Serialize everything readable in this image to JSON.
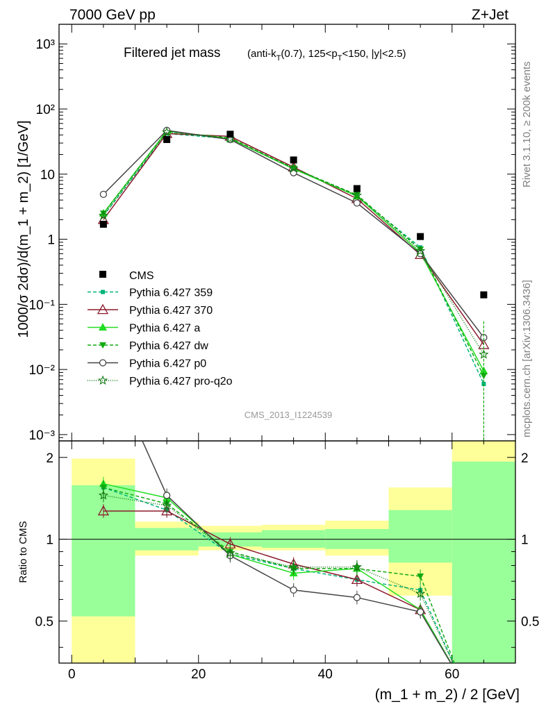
{
  "header": {
    "left": "7000 GeV pp",
    "right": "Z+Jet",
    "side_top": "Rivet 3.1.10, ≥ 200k events",
    "side_bottom": "mcplots.cern.ch [arXiv:1306.3436]",
    "watermark": "CMS_2013_I1224539"
  },
  "chart_data": {
    "type": "line",
    "title_main": "Filtered jet mass",
    "title_cut_prefix": "(anti-k",
    "title_cut_sub1": "T",
    "title_cut_mid": "(0.7), 125<p",
    "title_cut_sub2": "T",
    "title_cut_suffix": "<150, |y|<2.5)",
    "xlabel": "(m_1 + m_2) / 2 [GeV]",
    "ylabel": "1000/σ 2dσ)/d(m_1 + m_2) [1/GeV]",
    "ratio_label": "Ratio to CMS",
    "xlim": [
      -2,
      70
    ],
    "ylim": [
      0.0008,
      2000
    ],
    "ratio_ylim": [
      0.35,
      2.3
    ],
    "x_ticks": [
      "0",
      "20",
      "40",
      "60"
    ],
    "y_ticks": [
      "10⁻³",
      "10⁻²",
      "10⁻¹",
      "1",
      "10",
      "10²",
      "10³"
    ],
    "ratio_ticks": [
      "0.5",
      "1",
      "2"
    ],
    "bins": [
      [
        0,
        10
      ],
      [
        10,
        20
      ],
      [
        20,
        30
      ],
      [
        30,
        40
      ],
      [
        40,
        50
      ],
      [
        50,
        60
      ],
      [
        60,
        70
      ]
    ],
    "x": [
      5,
      15,
      25,
      35,
      45,
      55,
      65
    ],
    "data": {
      "name": "CMS",
      "values": [
        1.7,
        34,
        41,
        16.5,
        6.0,
        1.1,
        0.14
      ]
    },
    "band_inner": [
      [
        0.52,
        1.58
      ],
      [
        0.91,
        1.1
      ],
      [
        0.94,
        1.06
      ],
      [
        0.93,
        1.08
      ],
      [
        0.92,
        1.09
      ],
      [
        0.82,
        1.28
      ],
      [
        0.3,
        1.93
      ]
    ],
    "band_outer": [
      [
        0.3,
        1.98
      ],
      [
        0.87,
        1.16
      ],
      [
        0.91,
        1.12
      ],
      [
        0.91,
        1.13
      ],
      [
        0.87,
        1.17
      ],
      [
        0.62,
        1.55
      ],
      [
        0.3,
        2.4
      ]
    ],
    "series": [
      {
        "name": "Pythia 6.427 359",
        "color": "#00b37a",
        "dash": "5,3",
        "marker": "square",
        "values": [
          2.3,
          42,
          35,
          12.3,
          4.6,
          0.75,
          0.006
        ],
        "ratio": [
          1.55,
          1.28,
          0.88,
          0.78,
          0.71,
          0.65,
          null
        ]
      },
      {
        "name": "Pythia 6.427 370",
        "color": "#8b1a2c",
        "dash": "",
        "marker": "triangle-open",
        "values": [
          2.0,
          42,
          38,
          12.8,
          4.2,
          0.58,
          0.024
        ],
        "ratio": [
          1.27,
          1.27,
          0.96,
          0.81,
          0.71,
          0.55,
          null
        ]
      },
      {
        "name": "Pythia 6.427 a",
        "color": "#22dd22",
        "dash": "",
        "marker": "triangle",
        "values": [
          2.5,
          46,
          35,
          12.0,
          4.6,
          0.62,
          0.0095
        ],
        "ratio": [
          1.6,
          1.42,
          0.88,
          0.75,
          0.78,
          0.55,
          null
        ]
      },
      {
        "name": "Pythia 6.427 dw",
        "color": "#11aa11",
        "dash": "5,3",
        "marker": "triangle-down",
        "values": [
          2.5,
          45,
          36,
          12.3,
          4.8,
          0.7,
          0.008
        ],
        "ratio": [
          1.55,
          1.35,
          0.9,
          0.78,
          0.78,
          0.73,
          null
        ]
      },
      {
        "name": "Pythia 6.427 p0",
        "color": "#444444",
        "dash": "",
        "marker": "circle-open",
        "values": [
          4.9,
          47,
          34,
          10.5,
          3.6,
          0.6,
          0.031
        ],
        "ratio": [
          4.8,
          1.45,
          0.87,
          0.65,
          0.61,
          0.54,
          null
        ]
      },
      {
        "name": "Pythia 6.427 pro-q2o",
        "color": "#117711",
        "dash": "1,2",
        "marker": "star",
        "values": [
          2.3,
          44,
          35,
          12.3,
          4.7,
          0.66,
          0.017
        ],
        "ratio": [
          1.45,
          1.33,
          0.89,
          0.79,
          0.79,
          0.63,
          null
        ]
      }
    ]
  }
}
